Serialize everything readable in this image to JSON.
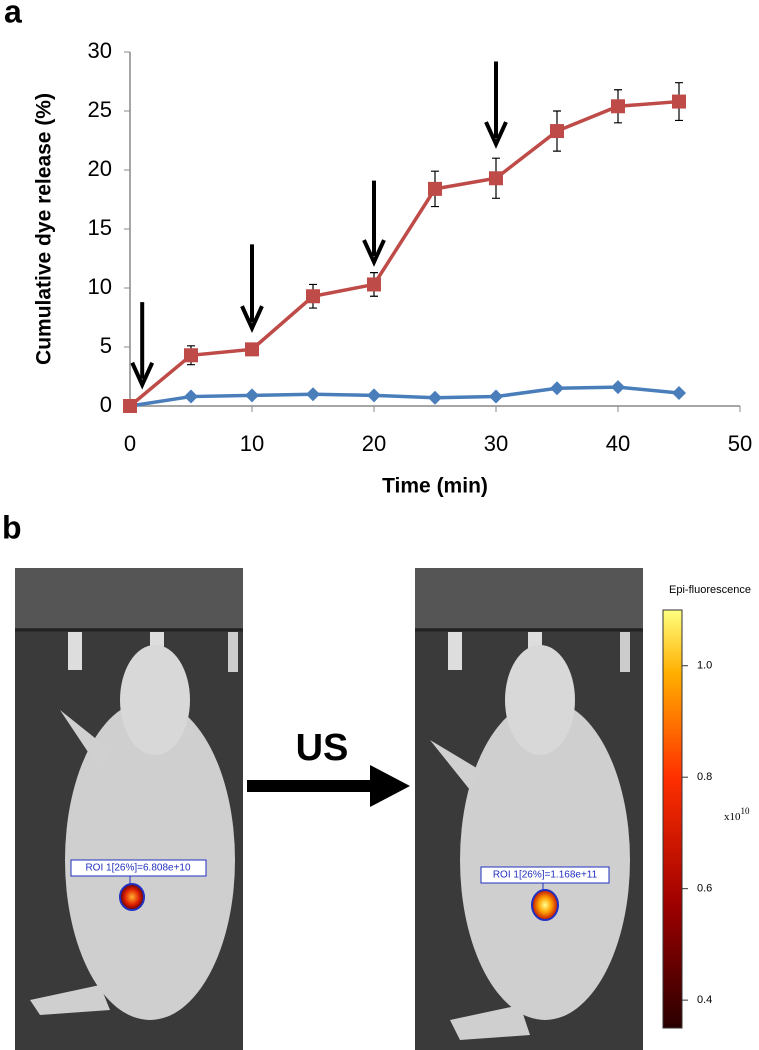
{
  "chart_data": {
    "type": "line",
    "panel_label": "a",
    "x_label": "Time (min)",
    "y_label": "Cumulative dye release (%)",
    "x": [
      0,
      5,
      10,
      15,
      20,
      25,
      30,
      35,
      40,
      45
    ],
    "series": [
      {
        "color": "#4a7ebb",
        "marker": "diamond",
        "values": [
          0,
          0.8,
          0.9,
          1.0,
          0.9,
          0.7,
          0.8,
          1.5,
          1.6,
          1.1
        ]
      },
      {
        "color": "#be4b48",
        "marker": "square",
        "values": [
          0,
          4.3,
          4.8,
          9.3,
          10.3,
          18.4,
          19.3,
          23.3,
          25.4,
          25.8
        ],
        "errors": [
          0,
          0.8,
          0.5,
          1.0,
          1.0,
          1.5,
          1.7,
          1.7,
          1.4,
          1.6
        ]
      }
    ],
    "arrows": [
      {
        "x": 1,
        "y_top": 8.8,
        "y_tip": 1.8
      },
      {
        "x": 10,
        "y_top": 13.7,
        "y_tip": 6.6
      },
      {
        "x": 20,
        "y_top": 19.1,
        "y_tip": 12.2
      },
      {
        "x": 30,
        "y_top": 29.2,
        "y_tip": 22.2
      }
    ],
    "xlim": [
      0,
      50
    ],
    "xticks": [
      0,
      10,
      20,
      30,
      40,
      50
    ],
    "ylim": [
      0,
      30
    ],
    "yticks": [
      0,
      5,
      10,
      15,
      20,
      25,
      30
    ],
    "grid": false
  },
  "panel_b": {
    "panel_label": "b",
    "arrow_label": "US",
    "left_roi": "ROI 1[26%]=6.808e+10",
    "right_roi": "ROI 1[26%]=1.168e+11",
    "colorbar_title": "Epi-fluorescence",
    "colorbar_unit": "x10",
    "colorbar_exponent": "10",
    "colorbar_lim": [
      0.35,
      1.1
    ],
    "colorbar_ticks": [
      {
        "value": 1.0,
        "label": "1.0"
      },
      {
        "value": 0.8,
        "label": "0.8"
      },
      {
        "value": 0.6,
        "label": "0.6"
      },
      {
        "value": 0.4,
        "label": "0.4"
      }
    ]
  }
}
